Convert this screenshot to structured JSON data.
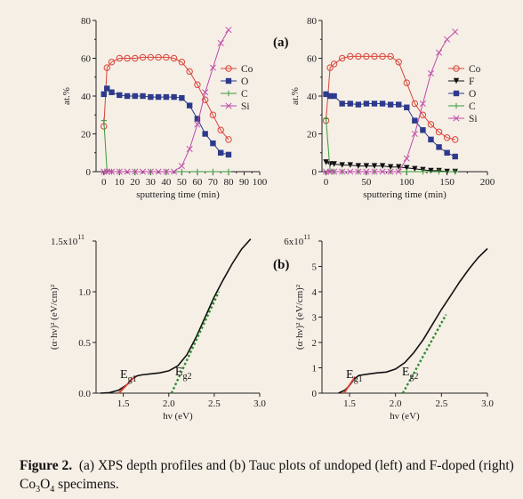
{
  "colors": {
    "Co": "#d9443a",
    "O": "#2d3a8c",
    "C": "#3a9a3a",
    "Si": "#c04aa8",
    "F": "#111111",
    "tauc_curve": "#111111",
    "tauc_fit_g1": "#d9443a",
    "tauc_fit_g2": "#2e8b2e"
  },
  "caption": {
    "lead": "Figure 2.",
    "text": "(a) XPS depth profiles and (b) Tauc plots of undoped (left) and F-doped (right) Co",
    "sub": "3",
    "o": "O",
    "sub2": "4",
    "tail": " specimens."
  },
  "chart_data": [
    {
      "type": "line",
      "panel": "(a) left",
      "xlabel": "sputtering time (min)",
      "ylabel": "at.%",
      "xlim": [
        -5,
        100
      ],
      "ylim": [
        0,
        80
      ],
      "xticks": [
        0,
        10,
        20,
        30,
        40,
        50,
        60,
        70,
        80,
        90,
        100
      ],
      "yticks": [
        0,
        20,
        40,
        60,
        80
      ],
      "legend_position": "right",
      "series": [
        {
          "name": "Co",
          "marker": "circle",
          "x": [
            0,
            2,
            5,
            10,
            15,
            20,
            25,
            30,
            35,
            40,
            45,
            50,
            55,
            60,
            65,
            70,
            75,
            80
          ],
          "y": [
            24,
            55,
            58,
            60,
            60,
            60,
            60.5,
            60.5,
            60.5,
            60.5,
            60,
            58,
            53,
            46,
            38,
            30,
            22,
            17
          ]
        },
        {
          "name": "O",
          "marker": "square",
          "x": [
            0,
            2,
            5,
            10,
            15,
            20,
            25,
            30,
            35,
            40,
            45,
            50,
            55,
            60,
            65,
            70,
            75,
            80
          ],
          "y": [
            41,
            44,
            42,
            40.5,
            40,
            40,
            40,
            39.5,
            39.5,
            39.5,
            39.5,
            39,
            35,
            28,
            20,
            15,
            10,
            9
          ]
        },
        {
          "name": "C",
          "marker": "plus",
          "x": [
            0,
            2,
            5,
            10,
            20,
            30,
            40,
            50,
            60,
            70,
            80
          ],
          "y": [
            27,
            0.5,
            0,
            0,
            0,
            0,
            0,
            0,
            0,
            0,
            0
          ]
        },
        {
          "name": "Si",
          "marker": "x",
          "x": [
            0,
            2,
            5,
            10,
            15,
            20,
            25,
            30,
            35,
            40,
            45,
            50,
            55,
            60,
            65,
            70,
            75,
            80
          ],
          "y": [
            0,
            0,
            0,
            0,
            0,
            0,
            0,
            0,
            0,
            0,
            0,
            3,
            12,
            25,
            42,
            55,
            68,
            75
          ]
        }
      ]
    },
    {
      "type": "line",
      "panel": "(a) right",
      "xlabel": "sputtering time (min)",
      "ylabel": "at.%",
      "xlim": [
        -5,
        200
      ],
      "ylim": [
        0,
        80
      ],
      "xticks": [
        0,
        50,
        100,
        150,
        200
      ],
      "yticks": [
        0,
        20,
        40,
        60,
        80
      ],
      "legend_position": "right",
      "series": [
        {
          "name": "Co",
          "marker": "circle",
          "x": [
            0,
            5,
            10,
            20,
            30,
            40,
            50,
            60,
            70,
            80,
            90,
            100,
            110,
            120,
            130,
            140,
            150,
            160
          ],
          "y": [
            27,
            55,
            57,
            60,
            61,
            61,
            61,
            61,
            61,
            61,
            58,
            47,
            36,
            30,
            25,
            21,
            18,
            17
          ]
        },
        {
          "name": "F",
          "marker": "triangle-down",
          "x": [
            0,
            5,
            10,
            20,
            30,
            40,
            50,
            60,
            70,
            80,
            90,
            100,
            110,
            120,
            130,
            140,
            150,
            160
          ],
          "y": [
            5,
            4,
            4,
            3.5,
            3.5,
            3,
            3,
            3,
            3,
            2.5,
            2.5,
            2,
            1.5,
            1,
            0.5,
            0.5,
            0,
            0
          ]
        },
        {
          "name": "O",
          "marker": "square",
          "x": [
            0,
            5,
            10,
            20,
            30,
            40,
            50,
            60,
            70,
            80,
            90,
            100,
            110,
            120,
            130,
            140,
            150,
            160
          ],
          "y": [
            41,
            40,
            40,
            36,
            36,
            35.5,
            36,
            36,
            36,
            35.5,
            35.5,
            34,
            27,
            22,
            17,
            13,
            10,
            8
          ]
        },
        {
          "name": "C",
          "marker": "plus",
          "x": [
            0,
            5,
            10,
            20,
            40,
            60,
            80,
            100,
            120,
            140,
            160
          ],
          "y": [
            28,
            0.5,
            0,
            0,
            0,
            0,
            0,
            0,
            0,
            0,
            0
          ]
        },
        {
          "name": "Si",
          "marker": "x",
          "x": [
            0,
            5,
            10,
            20,
            30,
            40,
            50,
            60,
            70,
            80,
            90,
            100,
            110,
            120,
            130,
            140,
            150,
            160
          ],
          "y": [
            0,
            0,
            0,
            0,
            0,
            0,
            0,
            0,
            0,
            0,
            0,
            7,
            20,
            36,
            52,
            63,
            70,
            74
          ]
        }
      ]
    },
    {
      "type": "line",
      "panel": "(b) left",
      "xlabel": "hν (eV)",
      "ylabel": "(α·hν)² (eV/cm)²",
      "y_multiplier": "x10¹¹",
      "xlim": [
        1.2,
        3.0
      ],
      "ylim": [
        0,
        1.5
      ],
      "xticks": [
        1.5,
        2.0,
        2.5,
        3.0
      ],
      "yticks": [
        0.0,
        0.5,
        1.0,
        1.5
      ],
      "ytick_labels": [
        "0.0",
        "0.5",
        "1.0",
        "1.5x10"
      ],
      "annotations": [
        {
          "text": "E",
          "sub": "g1"
        },
        {
          "text": "E",
          "sub": "g2"
        }
      ],
      "curve": {
        "x": [
          1.25,
          1.35,
          1.45,
          1.55,
          1.6,
          1.65,
          1.7,
          1.8,
          1.9,
          2.0,
          2.1,
          2.2,
          2.3,
          2.4,
          2.5,
          2.6,
          2.7,
          2.8,
          2.9
        ],
        "y": [
          0.0,
          0.005,
          0.03,
          0.09,
          0.14,
          0.17,
          0.18,
          0.19,
          0.2,
          0.22,
          0.27,
          0.38,
          0.55,
          0.75,
          0.95,
          1.12,
          1.28,
          1.42,
          1.52
        ]
      },
      "fit_g1": {
        "x": [
          1.45,
          1.62
        ],
        "y": [
          0.0,
          0.16
        ]
      },
      "fit_g2": {
        "x": [
          2.03,
          2.55
        ],
        "y": [
          0.0,
          1.0
        ]
      }
    },
    {
      "type": "line",
      "panel": "(b) right",
      "xlabel": "hν (eV)",
      "ylabel": "(α·hν)² (eV/cm)²",
      "y_multiplier": "x10¹¹",
      "xlim": [
        1.2,
        3.0
      ],
      "ylim": [
        0,
        6
      ],
      "xticks": [
        1.5,
        2.0,
        2.5,
        3.0
      ],
      "yticks": [
        0,
        1,
        2,
        3,
        4,
        5,
        6
      ],
      "ytick_labels": [
        "0",
        "1",
        "2",
        "3",
        "4",
        "5",
        "6x10"
      ],
      "annotations": [
        {
          "text": "E",
          "sub": "g1"
        },
        {
          "text": "E",
          "sub": "g2"
        }
      ],
      "curve": {
        "x": [
          1.38,
          1.45,
          1.5,
          1.55,
          1.6,
          1.7,
          1.8,
          1.9,
          2.0,
          2.1,
          2.2,
          2.3,
          2.4,
          2.5,
          2.6,
          2.7,
          2.8,
          2.9,
          3.0
        ],
        "y": [
          0.0,
          0.12,
          0.3,
          0.55,
          0.7,
          0.75,
          0.8,
          0.83,
          0.95,
          1.2,
          1.6,
          2.1,
          2.7,
          3.3,
          3.85,
          4.4,
          4.9,
          5.35,
          5.7
        ]
      },
      "fit_g1": {
        "x": [
          1.44,
          1.56
        ],
        "y": [
          0.0,
          0.65
        ]
      },
      "fit_g2": {
        "x": [
          2.08,
          2.55
        ],
        "y": [
          0.0,
          3.1
        ]
      }
    }
  ],
  "panel_labels": {
    "a": "(a)",
    "b": "(b)"
  }
}
